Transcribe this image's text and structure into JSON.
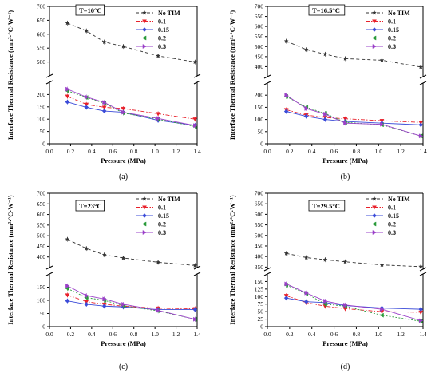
{
  "figure": {
    "colors": {
      "No TIM": "#333333",
      "0.1": "#e8202a",
      "0.15": "#3b4bd8",
      "0.2": "#2a9a3a",
      "0.3": "#9a40c8",
      "axis": "#000000"
    }
  },
  "chart_data": [
    {
      "type": "line",
      "panel": "(a)",
      "annotation": "T=10°C",
      "xlabel": "Pressure (MPa)",
      "ylabel": "Interface Thermal Resistance (mm²·°C·W⁻¹)",
      "xlim": [
        0.0,
        1.4
      ],
      "xticks": [
        "0.0",
        "0.2",
        "0.4",
        "0.6",
        "0.8",
        "1.0",
        "1.2",
        "1.4"
      ],
      "ylim_lower": [
        0,
        250
      ],
      "yticks_lower": [
        "0",
        "50",
        "100",
        "150",
        "200"
      ],
      "ylim_upper": [
        450,
        700
      ],
      "yticks_upper": [
        "500",
        "550",
        "600",
        "650",
        "700"
      ],
      "legend_position": "top-right",
      "x": [
        0.17,
        0.35,
        0.52,
        0.7,
        1.03,
        1.38
      ],
      "series": [
        {
          "name": "No TIM",
          "values": [
            640,
            612,
            572,
            556,
            522,
            500
          ]
        },
        {
          "name": "0.1",
          "values": [
            193,
            160,
            148,
            143,
            122,
            100
          ]
        },
        {
          "name": "0.15",
          "values": [
            170,
            148,
            133,
            128,
            95,
            75
          ]
        },
        {
          "name": "0.2",
          "values": [
            215,
            188,
            165,
            125,
            100,
            70
          ]
        },
        {
          "name": "0.3",
          "values": [
            222,
            190,
            168,
            128,
            103,
            74
          ]
        }
      ]
    },
    {
      "type": "line",
      "panel": "(b)",
      "annotation": "T=16.5°C",
      "xlabel": "Pressure (MPa)",
      "ylabel": "Interface Thermal Resistance (mm²·°C·W⁻¹)",
      "xlim": [
        0.0,
        1.4
      ],
      "xticks": [
        "0.0",
        "0.2",
        "0.4",
        "0.6",
        "0.8",
        "1.0",
        "1.2",
        "1.4"
      ],
      "ylim_lower": [
        0,
        250
      ],
      "yticks_lower": [
        "0",
        "50",
        "100",
        "150",
        "200"
      ],
      "ylim_upper": [
        350,
        700
      ],
      "yticks_upper": [
        "400",
        "450",
        "500",
        "550",
        "600",
        "650",
        "700"
      ],
      "legend_position": "top-right",
      "x": [
        0.17,
        0.35,
        0.52,
        0.7,
        1.03,
        1.38
      ],
      "series": [
        {
          "name": "No TIM",
          "values": [
            527,
            485,
            462,
            440,
            432,
            398
          ]
        },
        {
          "name": "0.1",
          "values": [
            140,
            118,
            108,
            103,
            95,
            88
          ]
        },
        {
          "name": "0.15",
          "values": [
            133,
            113,
            100,
            92,
            85,
            78
          ]
        },
        {
          "name": "0.2",
          "values": [
            195,
            150,
            125,
            88,
            78,
            32
          ]
        },
        {
          "name": "0.3",
          "values": [
            200,
            145,
            122,
            85,
            80,
            32
          ]
        }
      ]
    },
    {
      "type": "line",
      "panel": "(c)",
      "annotation": "T=23°C",
      "xlabel": "Pressure (MPa)",
      "ylabel": "Interface Thermal Resistance (mm²·°C·W⁻¹)",
      "xlim": [
        0.0,
        1.4
      ],
      "xticks": [
        "0.0",
        "0.2",
        "0.4",
        "0.6",
        "0.8",
        "1.0",
        "1.2",
        "1.4"
      ],
      "ylim_lower": [
        0,
        200
      ],
      "yticks_lower": [
        "0",
        "50",
        "100",
        "150"
      ],
      "ylim_upper": [
        350,
        700
      ],
      "yticks_upper": [
        "400",
        "450",
        "500",
        "550",
        "600",
        "650",
        "700"
      ],
      "legend_position": "top-right",
      "x": [
        0.17,
        0.35,
        0.52,
        0.7,
        1.03,
        1.38
      ],
      "series": [
        {
          "name": "No TIM",
          "values": [
            483,
            440,
            410,
            395,
            375,
            360
          ]
        },
        {
          "name": "0.1",
          "values": [
            120,
            95,
            85,
            78,
            70,
            68
          ]
        },
        {
          "name": "0.15",
          "values": [
            98,
            85,
            78,
            75,
            65,
            65
          ]
        },
        {
          "name": "0.2",
          "values": [
            145,
            110,
            100,
            80,
            60,
            28
          ]
        },
        {
          "name": "0.3",
          "values": [
            155,
            118,
            105,
            85,
            62,
            28
          ]
        }
      ]
    },
    {
      "type": "line",
      "panel": "(d)",
      "annotation": "T=29.5°C",
      "xlabel": "Pressure (MPa)",
      "ylabel": "Interface Thermal Resistance (mm²·°C·W⁻¹)",
      "xlim": [
        0.0,
        1.4
      ],
      "xticks": [
        "0.0",
        "0.2",
        "0.4",
        "0.6",
        "0.8",
        "1.0",
        "1.2",
        "1.4"
      ],
      "ylim_lower": [
        0,
        175
      ],
      "yticks_lower": [
        "0",
        "25",
        "50",
        "75",
        "100",
        "125",
        "150"
      ],
      "ylim_upper": [
        340,
        700
      ],
      "yticks_upper": [
        "350",
        "400",
        "450",
        "500",
        "550",
        "600",
        "650",
        "700"
      ],
      "legend_position": "top-right",
      "x": [
        0.17,
        0.35,
        0.52,
        0.7,
        1.03,
        1.38
      ],
      "series": [
        {
          "name": "No TIM",
          "values": [
            415,
            395,
            385,
            375,
            360,
            352
          ]
        },
        {
          "name": "0.1",
          "values": [
            103,
            80,
            68,
            60,
            50,
            48
          ]
        },
        {
          "name": "0.15",
          "values": [
            95,
            83,
            80,
            70,
            62,
            58
          ]
        },
        {
          "name": "0.2",
          "values": [
            138,
            110,
            75,
            68,
            38,
            18
          ]
        },
        {
          "name": "0.3",
          "values": [
            142,
            112,
            85,
            72,
            58,
            20
          ]
        }
      ]
    }
  ]
}
